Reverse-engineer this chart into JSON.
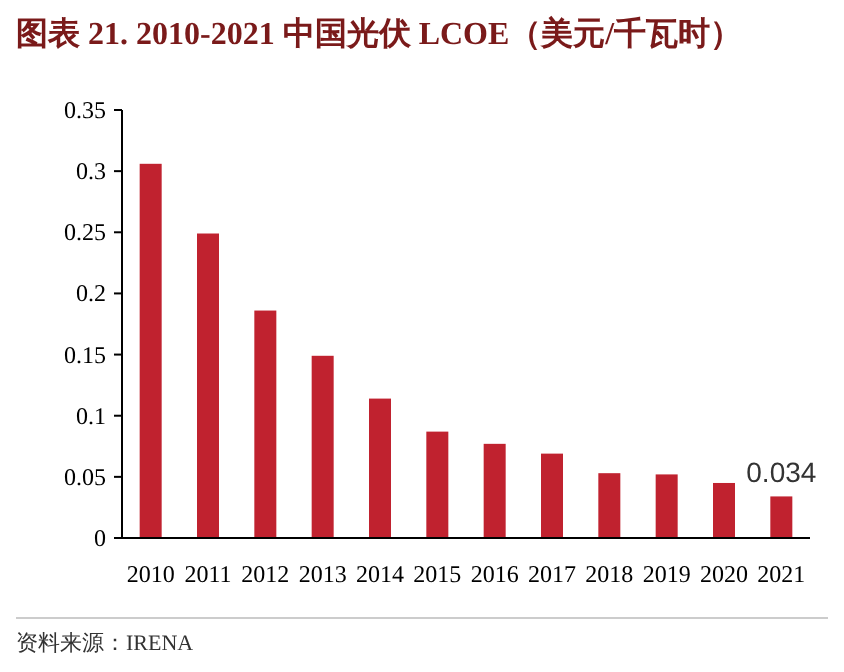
{
  "chart_data": {
    "type": "bar",
    "title": "图表 21. 2010-2021 中国光伏 LCOE（美元/千瓦时）",
    "categories": [
      "2010",
      "2011",
      "2012",
      "2013",
      "2014",
      "2015",
      "2016",
      "2017",
      "2018",
      "2019",
      "2020",
      "2021"
    ],
    "values": [
      0.306,
      0.249,
      0.186,
      0.149,
      0.114,
      0.087,
      0.077,
      0.069,
      0.053,
      0.052,
      0.045,
      0.034
    ],
    "value_labels": [
      null,
      null,
      null,
      null,
      null,
      null,
      null,
      null,
      null,
      null,
      null,
      "0.034"
    ],
    "color": "#c0222f",
    "ylim": [
      0,
      0.35
    ],
    "yticks": [
      {
        "value": 0,
        "label": "0"
      },
      {
        "value": 0.05,
        "label": "0.05"
      },
      {
        "value": 0.1,
        "label": "0.1"
      },
      {
        "value": 0.15,
        "label": "0.15"
      },
      {
        "value": 0.2,
        "label": "0.2"
      },
      {
        "value": 0.25,
        "label": "0.25"
      },
      {
        "value": 0.3,
        "label": "0.3"
      },
      {
        "value": 0.35,
        "label": "0.35"
      }
    ],
    "grid": false,
    "annotations": [
      "资料来源：IRENA"
    ]
  }
}
